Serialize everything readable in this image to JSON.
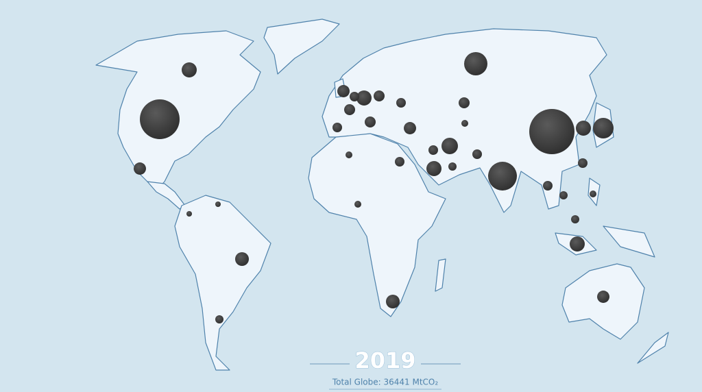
{
  "year": "2019",
  "total": "Total Globe: 36441 MtCO₂",
  "bubbles": [
    {
      "value": 10000
    },
    {
      "value": 7720
    },
    {
      "value": 4050
    },
    {
      "value": 2650
    },
    {
      "value": 2070
    },
    {
      "value": 1110
    },
    {
      "value": 1320
    },
    {
      "value": 1110
    },
    {
      "value": 1110
    },
    {
      "value": 1110
    },
    {
      "value": 1110
    },
    {
      "value": 740
    },
    {
      "value": 920
    },
    {
      "value": 920
    },
    {
      "value": 740
    },
    {
      "value": 740
    },
    {
      "value": 740
    },
    {
      "value": 590
    },
    {
      "value": 590
    },
    {
      "value": 590
    },
    {
      "value": 590
    },
    {
      "value": 450
    },
    {
      "value": 450
    },
    {
      "value": 330
    },
    {
      "value": 330
    },
    {
      "value": 450
    },
    {
      "value": 450
    },
    {
      "value": 450
    },
    {
      "value": 450
    },
    {
      "value": 330
    },
    {
      "value": 450
    },
    {
      "value": 330
    },
    {
      "value": 230
    },
    {
      "value": 230
    },
    {
      "value": 230
    },
    {
      "value": 450
    },
    {
      "value": 150
    },
    {
      "value": 150
    },
    {
      "value": 230
    }
  ]
}
